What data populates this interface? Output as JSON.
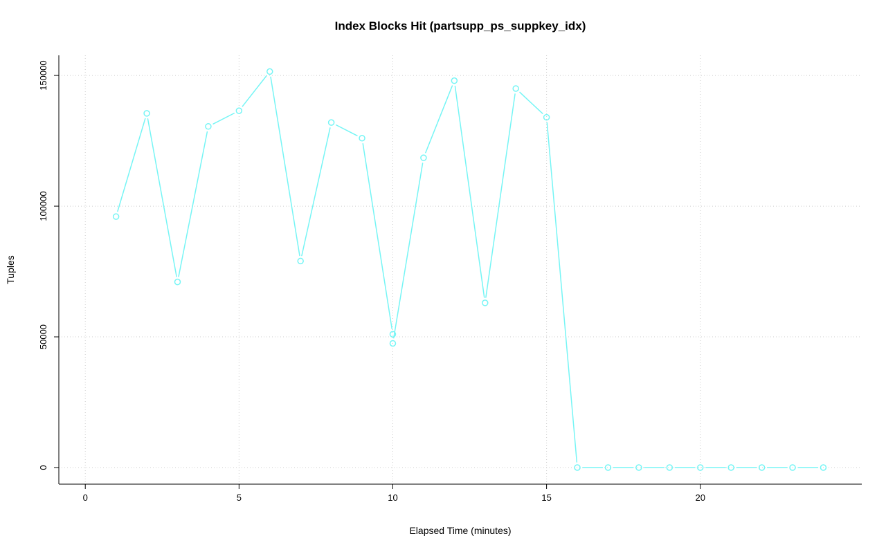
{
  "page": {
    "background": "#ffffff"
  },
  "chart_data": {
    "type": "line",
    "title": "Index Blocks Hit (partsupp_ps_suppkey_idx)",
    "xlabel": "Elapsed Time (minutes)",
    "ylabel": "Tuples",
    "x_ticks": [
      0,
      5,
      10,
      15,
      20
    ],
    "y_ticks": [
      0,
      50000,
      100000,
      150000
    ],
    "xlim": [
      -0.86,
      25.25
    ],
    "ylim": [
      -6350,
      157700
    ],
    "grid": true,
    "grid_color": "#cccccc",
    "grid_style": "dotted",
    "axis_color": "#000000",
    "legend": "none",
    "series": [
      {
        "name": "index-blocks-hit",
        "color": "#76f5f5",
        "marker": "open-circle",
        "line_type": "both-points-and-segments",
        "points": [
          [
            1,
            96000
          ],
          [
            2,
            135500
          ],
          [
            3,
            71000
          ],
          [
            4,
            130500
          ],
          [
            5,
            136500
          ],
          [
            6,
            151500
          ],
          [
            7,
            79000
          ],
          [
            8,
            132000
          ],
          [
            9,
            126000
          ],
          [
            10,
            51000
          ],
          [
            10,
            47500
          ],
          [
            11,
            118500
          ],
          [
            12,
            148000
          ],
          [
            13,
            63000
          ],
          [
            14,
            145000
          ],
          [
            15,
            134000
          ],
          [
            16,
            0
          ],
          [
            17,
            0
          ],
          [
            18,
            0
          ],
          [
            19,
            0
          ],
          [
            20,
            0
          ],
          [
            21,
            0
          ],
          [
            22,
            0
          ],
          [
            23,
            0
          ],
          [
            24,
            0
          ]
        ]
      }
    ]
  }
}
